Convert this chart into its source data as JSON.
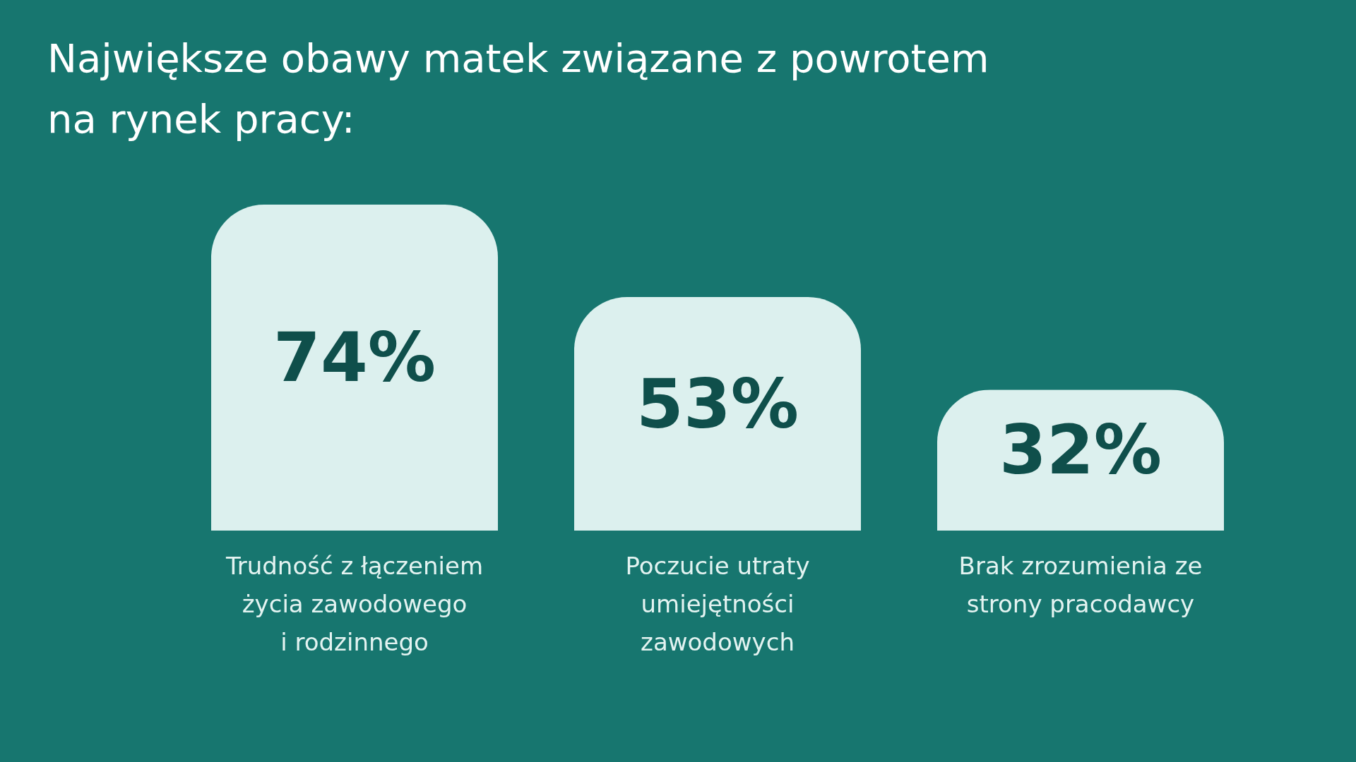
{
  "chart_data": {
    "type": "bar",
    "title": "Największe obawy matek związane z powrotem\nna rynek pracy:",
    "categories": [
      "Trudność z łączeniem\nżycia zawodowego\ni rodzinnego",
      "Poczucie utraty\numiejętności\nzawodowych",
      "Brak zrozumienia ze\nstrony pracodawcy"
    ],
    "values": [
      74,
      53,
      32
    ],
    "color": "#dcf0ee",
    "value_labels": [
      "74%",
      "53%",
      "32%"
    ]
  }
}
